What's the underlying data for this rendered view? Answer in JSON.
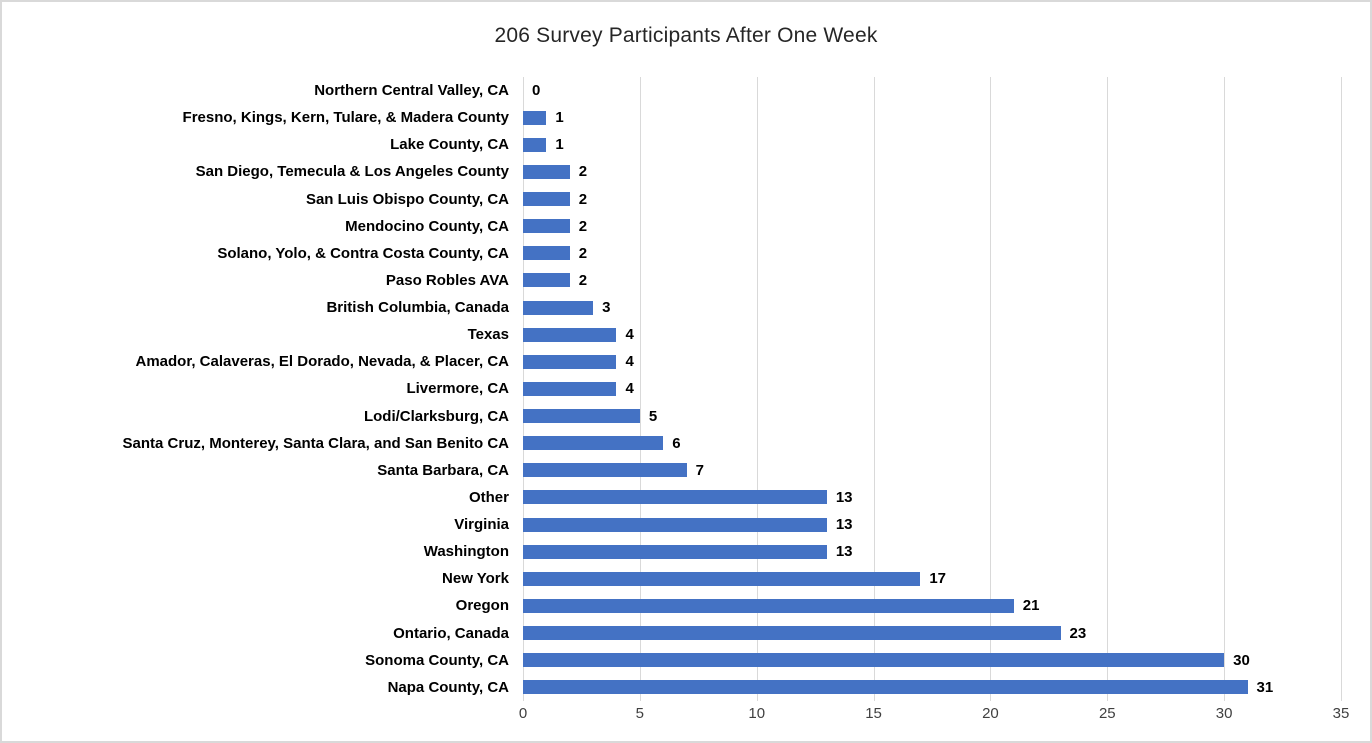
{
  "chart_data": {
    "type": "bar",
    "orientation": "horizontal",
    "title": "206 Survey Participants After One Week",
    "categories": [
      "Northern Central Valley, CA",
      "Fresno, Kings, Kern, Tulare, & Madera County",
      "Lake County, CA",
      "San Diego, Temecula & Los Angeles County",
      "San Luis Obispo County, CA",
      "Mendocino County, CA",
      "Solano, Yolo, & Contra Costa County, CA",
      "Paso Robles AVA",
      "British Columbia, Canada",
      "Texas",
      "Amador, Calaveras, El Dorado, Nevada, & Placer, CA",
      "Livermore, CA",
      "Lodi/Clarksburg, CA",
      "Santa Cruz, Monterey, Santa Clara, and San Benito CA",
      "Santa Barbara, CA",
      "Other",
      "Virginia",
      "Washington",
      "New York",
      "Oregon",
      "Ontario, Canada",
      "Sonoma County, CA",
      "Napa County, CA"
    ],
    "values": [
      0,
      1,
      1,
      2,
      2,
      2,
      2,
      2,
      3,
      4,
      4,
      4,
      5,
      6,
      7,
      13,
      13,
      13,
      17,
      21,
      23,
      30,
      31
    ],
    "xlabel": "",
    "ylabel": "",
    "xlim": [
      0,
      35
    ],
    "x_ticks": [
      0,
      5,
      10,
      15,
      20,
      25,
      30,
      35
    ],
    "grid": "vertical",
    "data_labels": true,
    "legend": "none",
    "bar_color": "#4472C4",
    "gridline_color": "#D9D9D9",
    "total_participants": 206
  },
  "colors": {
    "bar": "#4472C4",
    "gridline": "#D9D9D9",
    "frame_border": "#D9D9D9",
    "title_text": "#262626",
    "category_text": "#000000",
    "tick_text": "#404040",
    "background": "#FFFFFF"
  }
}
